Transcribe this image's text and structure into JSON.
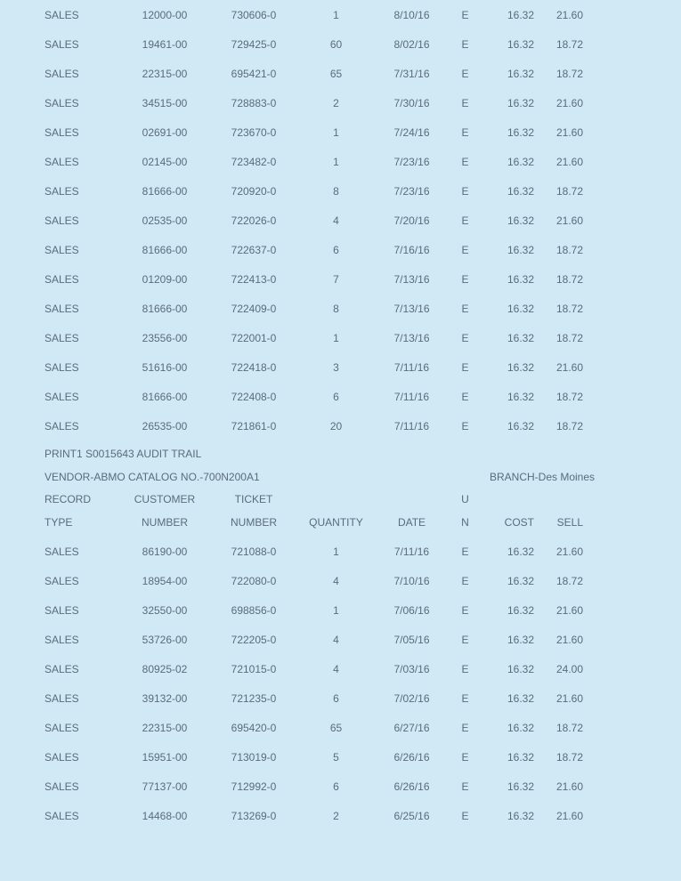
{
  "colors": {
    "background": "#d1e9f5",
    "text": "#5a6b7d"
  },
  "fonts": {
    "family": "Verdana, Arial, sans-serif",
    "size_pt": 12
  },
  "table1": {
    "rows": [
      {
        "type": "SALES",
        "customer": "12000-00",
        "ticket": "730606-0",
        "qty": "1",
        "date": "8/10/16",
        "un": "E",
        "cost": "16.32",
        "sell": "21.60"
      },
      {
        "type": "SALES",
        "customer": "19461-00",
        "ticket": "729425-0",
        "qty": "60",
        "date": "8/02/16",
        "un": "E",
        "cost": "16.32",
        "sell": "18.72"
      },
      {
        "type": "SALES",
        "customer": "22315-00",
        "ticket": "695421-0",
        "qty": "65",
        "date": "7/31/16",
        "un": "E",
        "cost": "16.32",
        "sell": "18.72"
      },
      {
        "type": "SALES",
        "customer": "34515-00",
        "ticket": "728883-0",
        "qty": "2",
        "date": "7/30/16",
        "un": "E",
        "cost": "16.32",
        "sell": "21.60"
      },
      {
        "type": "SALES",
        "customer": "02691-00",
        "ticket": "723670-0",
        "qty": "1",
        "date": "7/24/16",
        "un": "E",
        "cost": "16.32",
        "sell": "21.60"
      },
      {
        "type": "SALES",
        "customer": "02145-00",
        "ticket": "723482-0",
        "qty": "1",
        "date": "7/23/16",
        "un": "E",
        "cost": "16.32",
        "sell": "21.60"
      },
      {
        "type": "SALES",
        "customer": "81666-00",
        "ticket": "720920-0",
        "qty": "8",
        "date": "7/23/16",
        "un": "E",
        "cost": "16.32",
        "sell": "18.72"
      },
      {
        "type": "SALES",
        "customer": "02535-00",
        "ticket": "722026-0",
        "qty": "4",
        "date": "7/20/16",
        "un": "E",
        "cost": "16.32",
        "sell": "21.60"
      },
      {
        "type": "SALES",
        "customer": "81666-00",
        "ticket": "722637-0",
        "qty": "6",
        "date": "7/16/16",
        "un": "E",
        "cost": "16.32",
        "sell": "18.72"
      },
      {
        "type": "SALES",
        "customer": "01209-00",
        "ticket": "722413-0",
        "qty": "7",
        "date": "7/13/16",
        "un": "E",
        "cost": "16.32",
        "sell": "18.72"
      },
      {
        "type": "SALES",
        "customer": "81666-00",
        "ticket": "722409-0",
        "qty": "8",
        "date": "7/13/16",
        "un": "E",
        "cost": "16.32",
        "sell": "18.72"
      },
      {
        "type": "SALES",
        "customer": "23556-00",
        "ticket": "722001-0",
        "qty": "1",
        "date": "7/13/16",
        "un": "E",
        "cost": "16.32",
        "sell": "18.72"
      },
      {
        "type": "SALES",
        "customer": "51616-00",
        "ticket": "722418-0",
        "qty": "3",
        "date": "7/11/16",
        "un": "E",
        "cost": "16.32",
        "sell": "21.60"
      },
      {
        "type": "SALES",
        "customer": "81666-00",
        "ticket": "722408-0",
        "qty": "6",
        "date": "7/11/16",
        "un": "E",
        "cost": "16.32",
        "sell": "18.72"
      },
      {
        "type": "SALES",
        "customer": "26535-00",
        "ticket": "721861-0",
        "qty": "20",
        "date": "7/11/16",
        "un": "E",
        "cost": "16.32",
        "sell": "18.72"
      }
    ]
  },
  "section": {
    "title": "PRINT1 S0015643 AUDIT TRAIL",
    "vendor": "VENDOR-ABMO CATALOG NO.-700N200A1",
    "branch": "BRANCH-Des Moines"
  },
  "headers": {
    "row1": {
      "type": "RECORD",
      "customer": "CUSTOMER",
      "ticket": "TICKET",
      "qty": "",
      "date": "",
      "un": "U",
      "cost": "",
      "sell": ""
    },
    "row2": {
      "type": "TYPE",
      "customer": "NUMBER",
      "ticket": "NUMBER",
      "qty": "QUANTITY",
      "date": "DATE",
      "un": "N",
      "cost": "COST",
      "sell": "SELL"
    }
  },
  "table2": {
    "rows": [
      {
        "type": "SALES",
        "customer": "86190-00",
        "ticket": "721088-0",
        "qty": "1",
        "date": "7/11/16",
        "un": "E",
        "cost": "16.32",
        "sell": "21.60"
      },
      {
        "type": "SALES",
        "customer": "18954-00",
        "ticket": "722080-0",
        "qty": "4",
        "date": "7/10/16",
        "un": "E",
        "cost": "16.32",
        "sell": "18.72"
      },
      {
        "type": "SALES",
        "customer": "32550-00",
        "ticket": "698856-0",
        "qty": "1",
        "date": "7/06/16",
        "un": "E",
        "cost": "16.32",
        "sell": "21.60"
      },
      {
        "type": "SALES",
        "customer": "53726-00",
        "ticket": "722205-0",
        "qty": "4",
        "date": "7/05/16",
        "un": "E",
        "cost": "16.32",
        "sell": "21.60"
      },
      {
        "type": "SALES",
        "customer": "80925-02",
        "ticket": "721015-0",
        "qty": "4",
        "date": "7/03/16",
        "un": "E",
        "cost": "16.32",
        "sell": "24.00"
      },
      {
        "type": "SALES",
        "customer": "39132-00",
        "ticket": "721235-0",
        "qty": "6",
        "date": "7/02/16",
        "un": "E",
        "cost": "16.32",
        "sell": "21.60"
      },
      {
        "type": "SALES",
        "customer": "22315-00",
        "ticket": "695420-0",
        "qty": "65",
        "date": "6/27/16",
        "un": "E",
        "cost": "16.32",
        "sell": "18.72"
      },
      {
        "type": "SALES",
        "customer": "15951-00",
        "ticket": "713019-0",
        "qty": "5",
        "date": "6/26/16",
        "un": "E",
        "cost": "16.32",
        "sell": "18.72"
      },
      {
        "type": "SALES",
        "customer": "77137-00",
        "ticket": "712992-0",
        "qty": "6",
        "date": "6/26/16",
        "un": "E",
        "cost": "16.32",
        "sell": "21.60"
      },
      {
        "type": "SALES",
        "customer": "14468-00",
        "ticket": "713269-0",
        "qty": "2",
        "date": "6/25/16",
        "un": "E",
        "cost": "16.32",
        "sell": "21.60"
      }
    ]
  }
}
